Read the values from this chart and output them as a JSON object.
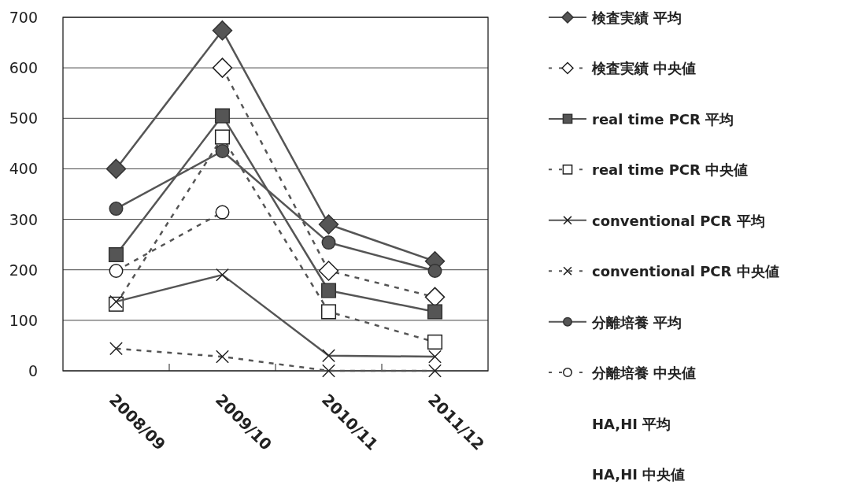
{
  "chart_data": {
    "type": "line",
    "categories": [
      "2008/09",
      "2009/10",
      "2010/11",
      "2011/12"
    ],
    "ylim": [
      0,
      700
    ],
    "yticks": [
      0,
      100,
      200,
      300,
      400,
      500,
      600,
      700
    ],
    "grid": "y",
    "legend": "right",
    "series": [
      {
        "name": "検査実績 平均",
        "color": "#555555",
        "marker": "diamond",
        "line_style": "solid",
        "values": [
          400,
          674,
          290,
          217
        ]
      },
      {
        "name": "検査実績 中央値",
        "color": "#555555",
        "marker": "diamond",
        "line_style": "dashed",
        "values": [
          null,
          600,
          198,
          146
        ]
      },
      {
        "name": "real time PCR 平均",
        "color": "#555555",
        "marker": "square",
        "line_style": "solid",
        "values": [
          230,
          505,
          159,
          117
        ]
      },
      {
        "name": "real time PCR 中央値",
        "color": "#555555",
        "marker": "square",
        "line_style": "dashed",
        "values": [
          132,
          463,
          117,
          57
        ]
      },
      {
        "name": "conventional PCR 平均",
        "color": "#555555",
        "marker": "cross",
        "line_style": "solid",
        "values": [
          137,
          190,
          30,
          28
        ]
      },
      {
        "name": "conventional PCR 中央値",
        "color": "#555555",
        "marker": "cross",
        "line_style": "dashed",
        "values": [
          44,
          28,
          0,
          0
        ]
      },
      {
        "name": "分離培養 平均",
        "color": "#555555",
        "marker": "circle",
        "line_style": "solid",
        "values": [
          321,
          435,
          254,
          198
        ]
      },
      {
        "name": "分離培養 中央値",
        "color": "#555555",
        "marker": "circle",
        "line_style": "dashed",
        "values": [
          198,
          314,
          null,
          null
        ]
      },
      {
        "name": "HA,HI 平均",
        "values": [
          null,
          null,
          null,
          null
        ]
      },
      {
        "name": "HA,HI 中央値",
        "values": [
          null,
          null,
          null,
          null
        ]
      }
    ]
  }
}
